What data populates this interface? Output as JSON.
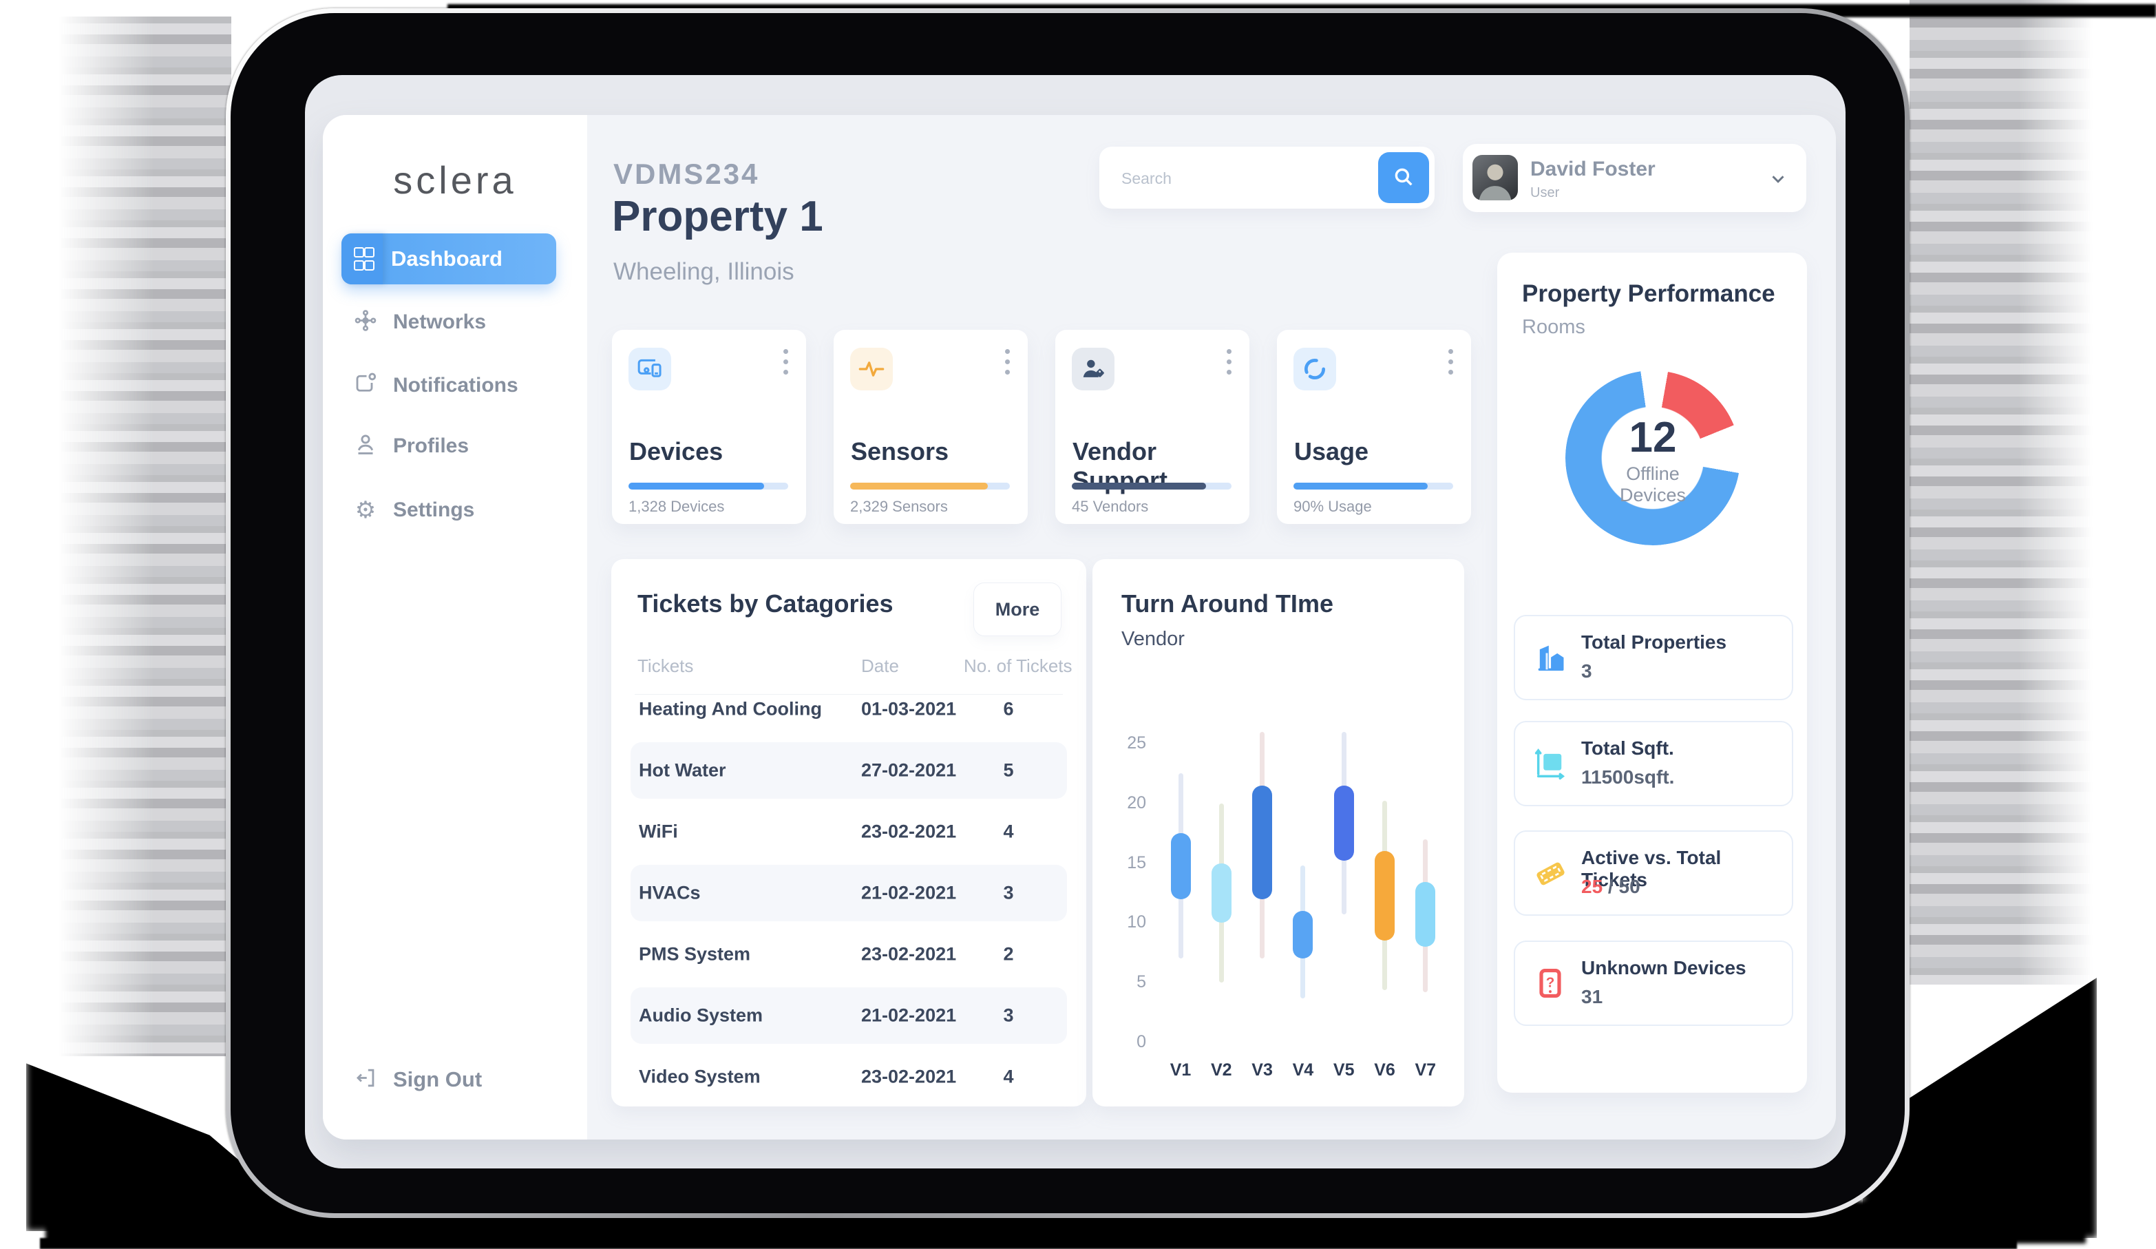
{
  "brand": {
    "logo_text": "sclera"
  },
  "sidebar": {
    "items": [
      {
        "label": "Dashboard",
        "active": true
      },
      {
        "label": "Networks",
        "active": false
      },
      {
        "label": "Notifications",
        "active": false
      },
      {
        "label": "Profiles",
        "active": false
      },
      {
        "label": "Settings",
        "active": false
      }
    ],
    "sign_out_label": "Sign Out"
  },
  "header": {
    "property_code": "VDMS234",
    "property_name": "Property 1",
    "location": "Wheeling, Illinois"
  },
  "search": {
    "placeholder": "Search"
  },
  "user": {
    "name": "David Foster",
    "role": "User"
  },
  "stat_cards": [
    {
      "title": "Devices",
      "caption": "1,328 Devices",
      "percent": 85,
      "fill": "#4D9DF5",
      "track": "#D9E7FA",
      "tile_bg": "#E4F0FD",
      "icon": "devices-icon",
      "icon_color": "#4A9FF5"
    },
    {
      "title": "Sensors",
      "caption": "2,329 Sensors",
      "percent": 86,
      "fill": "#F6B85A",
      "track": "#D9E7FA",
      "tile_bg": "#FDF3E3",
      "icon": "sensors-icon",
      "icon_color": "#F2A93C"
    },
    {
      "title": "Vendor Support",
      "caption": "45 Vendors",
      "percent": 84,
      "fill": "#47597A",
      "track": "#D9E7FA",
      "tile_bg": "#E6EAF0",
      "icon": "vendor-icon",
      "icon_color": "#3D5270"
    },
    {
      "title": "Usage",
      "caption": "90% Usage",
      "percent": 84,
      "fill": "#4F9FF3",
      "track": "#D9E7FA",
      "tile_bg": "#E4F0FD",
      "icon": "usage-icon",
      "icon_color": "#4A9FF5"
    }
  ],
  "tickets": {
    "title": "Tickets by Catagories",
    "more_label": "More",
    "columns": [
      "Tickets",
      "Date",
      "No. of Tickets"
    ],
    "rows": [
      {
        "name": "Heating And Cooling",
        "date": "01-03-2021",
        "count": "6"
      },
      {
        "name": "Hot Water",
        "date": "27-02-2021",
        "count": "5"
      },
      {
        "name": "WiFi",
        "date": "23-02-2021",
        "count": "4"
      },
      {
        "name": "HVACs",
        "date": "21-02-2021",
        "count": "3"
      },
      {
        "name": "PMS System",
        "date": "23-02-2021",
        "count": "2"
      },
      {
        "name": "Audio System",
        "date": "21-02-2021",
        "count": "3"
      },
      {
        "name": "Video System",
        "date": "23-02-2021",
        "count": "4"
      }
    ]
  },
  "chart_data": [
    {
      "type": "candlestick",
      "title": "Turn Around TIme",
      "subtitle": "Vendor",
      "categories": [
        "V1",
        "V2",
        "V3",
        "V4",
        "V5",
        "V6",
        "V7"
      ],
      "ylabel": "",
      "yticks": [
        0,
        5,
        10,
        15,
        20,
        25
      ],
      "ylim": [
        0,
        27.5
      ],
      "grid": false,
      "points": [
        {
          "label": "V1",
          "whisker_low": 7,
          "whisker_high": 22.5,
          "body_low": 12,
          "body_high": 17.5,
          "color": "#58A4F3",
          "whisker_color": "#E3E8F4"
        },
        {
          "label": "V2",
          "whisker_low": 5,
          "whisker_high": 20,
          "body_low": 10,
          "body_high": 15,
          "color": "#A7E3F9",
          "whisker_color": "#E7EBDD"
        },
        {
          "label": "V3",
          "whisker_low": 7,
          "whisker_high": 26,
          "body_low": 12,
          "body_high": 21.5,
          "color": "#3E7EDC",
          "whisker_color": "#F0E3E3"
        },
        {
          "label": "V4",
          "whisker_low": 3.7,
          "whisker_high": 14.8,
          "body_low": 7,
          "body_high": 11,
          "color": "#58A4F3",
          "whisker_color": "#DDEAF8"
        },
        {
          "label": "V5",
          "whisker_low": 10.7,
          "whisker_high": 26,
          "body_low": 15.2,
          "body_high": 21.5,
          "color": "#4B73E8",
          "whisker_color": "#E3E8F4"
        },
        {
          "label": "V6",
          "whisker_low": 4.4,
          "whisker_high": 20.2,
          "body_low": 8.5,
          "body_high": 16,
          "color": "#F6A93B",
          "whisker_color": "#E7EBDD"
        },
        {
          "label": "V7",
          "whisker_low": 4.2,
          "whisker_high": 17,
          "body_low": 8,
          "body_high": 13.4,
          "color": "#8CD9F9",
          "whisker_color": "#F0E3E3"
        }
      ]
    },
    {
      "type": "donut",
      "title": "Property Performance",
      "subtitle": "Rooms",
      "center_value": "12",
      "center_label": "Offline Devices",
      "segments": [
        {
          "name": "offline",
          "color": "#F25C5F",
          "start_deg": 10,
          "end_deg": 68
        },
        {
          "name": "online",
          "color": "#57A7F3",
          "start_deg": 100,
          "end_deg": 352
        }
      ]
    }
  ],
  "stats_tiles": [
    {
      "icon": "buildings-icon",
      "label": "Total Properties",
      "value": "3",
      "icon_color": "#4A9FF5"
    },
    {
      "icon": "area-icon",
      "label": "Total Sqft.",
      "value": "11500sqft.",
      "icon_color": "#5BD6EE"
    },
    {
      "icon": "ticket-icon",
      "label": "Active vs. Total Tickets",
      "value_active": "25",
      "value_rest": " / 50",
      "icon_color": "#F7C64B"
    },
    {
      "icon": "unknown-device-icon",
      "label": "Unknown Devices",
      "value": "31",
      "icon_color": "#F25C5F"
    }
  ],
  "colors": {
    "accent_blue": "#4B9FF6",
    "navy": "#2F3C55",
    "red": "#F25C5F",
    "orange": "#F6A93B",
    "donut_blue": "#57A7F3",
    "donut_red": "#F25C5F"
  }
}
